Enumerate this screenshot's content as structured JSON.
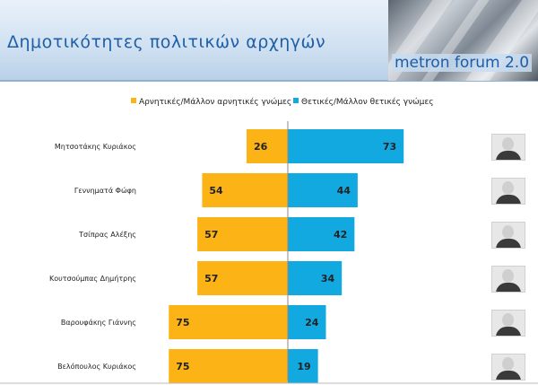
{
  "header": {
    "title": "Δημοτικότητες πολιτικών αρχηγών",
    "logo_text": "metron forum 2.0"
  },
  "chart_data": {
    "type": "bar",
    "orientation": "horizontal-diverging",
    "categories": [
      "Μητσοτάκης Κυριάκος",
      "Γεννηματά Φώφη",
      "Τσίπρας Αλέξης",
      "Κουτσούμπας Δημήτρης",
      "Βαρουφάκης Γιάννης",
      "Βελόπουλος Κυριάκος"
    ],
    "series": [
      {
        "name": "Αρνητικές/Μάλλον αρνητικές γνώμες",
        "color": "#fbb316",
        "values": [
          26,
          54,
          57,
          57,
          75,
          75
        ]
      },
      {
        "name": "Θετικές/Μάλλον θετικές γνώμες",
        "color": "#12a9e1",
        "values": [
          73,
          44,
          42,
          34,
          24,
          19
        ]
      }
    ],
    "legend_position": "top",
    "grid": false
  }
}
